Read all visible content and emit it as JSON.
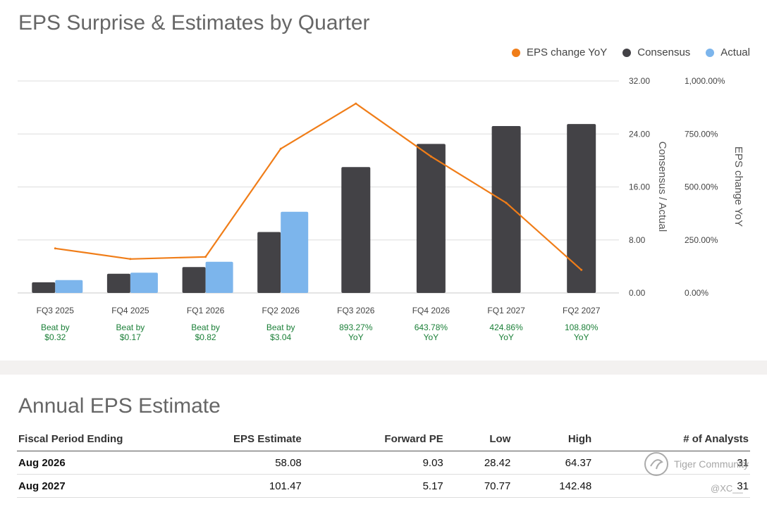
{
  "chart_data": {
    "type": "bar",
    "title": "EPS Surprise & Estimates by Quarter",
    "categories": [
      "FQ3 2025",
      "FQ4 2025",
      "FQ1 2026",
      "FQ2 2026",
      "FQ3 2026",
      "FQ4 2026",
      "FQ1 2027",
      "FQ2 2027"
    ],
    "series": [
      {
        "name": "Consensus",
        "type": "bar",
        "axis": "left",
        "color": "#434246",
        "values": [
          1.6,
          2.9,
          3.9,
          9.2,
          19.0,
          22.5,
          25.2,
          25.5
        ]
      },
      {
        "name": "Actual",
        "type": "bar",
        "axis": "left",
        "color": "#7cb5ec",
        "values": [
          1.95,
          3.05,
          4.7,
          12.25,
          null,
          null,
          null,
          null
        ]
      },
      {
        "name": "EPS change YoY",
        "type": "line",
        "axis": "right",
        "color": "#f07d18",
        "values": [
          210,
          160,
          170,
          680,
          893.27,
          643.78,
          424.86,
          108.8
        ]
      }
    ],
    "y_left": {
      "label": "Consensus / Actual",
      "min": 0,
      "max": 32,
      "ticks": [
        "0.00",
        "8.00",
        "16.00",
        "24.00",
        "32.00"
      ]
    },
    "y_right": {
      "label": "EPS change YoY",
      "min": 0,
      "max": 1000,
      "ticks": [
        "0.00%",
        "250.00%",
        "500.00%",
        "750.00%",
        "1,000.00%"
      ]
    },
    "annotations": [
      [
        "Beat by",
        "$0.32"
      ],
      [
        "Beat by",
        "$0.17"
      ],
      [
        "Beat by",
        "$0.82"
      ],
      [
        "Beat by",
        "$3.04"
      ],
      [
        "893.27%",
        "YoY"
      ],
      [
        "643.78%",
        "YoY"
      ],
      [
        "424.86%",
        "YoY"
      ],
      [
        "108.80%",
        "YoY"
      ]
    ],
    "annotation_color": "#1a7f37",
    "grid": true,
    "legend_position": "top-right"
  },
  "legend": {
    "items": [
      {
        "label": "EPS change YoY",
        "color": "#f07d18"
      },
      {
        "label": "Consensus",
        "color": "#434246"
      },
      {
        "label": "Actual",
        "color": "#7cb5ec"
      }
    ]
  },
  "annual": {
    "title": "Annual EPS Estimate",
    "columns": [
      "Fiscal Period Ending",
      "EPS Estimate",
      "Forward PE",
      "Low",
      "High",
      "# of Analysts"
    ],
    "rows": [
      [
        "Aug 2026",
        "58.08",
        "9.03",
        "28.42",
        "64.37",
        "31"
      ],
      [
        "Aug 2027",
        "101.47",
        "5.17",
        "70.77",
        "142.48",
        "31"
      ]
    ]
  },
  "watermark": {
    "text": "Tiger Community",
    "handle": "@XC__"
  }
}
